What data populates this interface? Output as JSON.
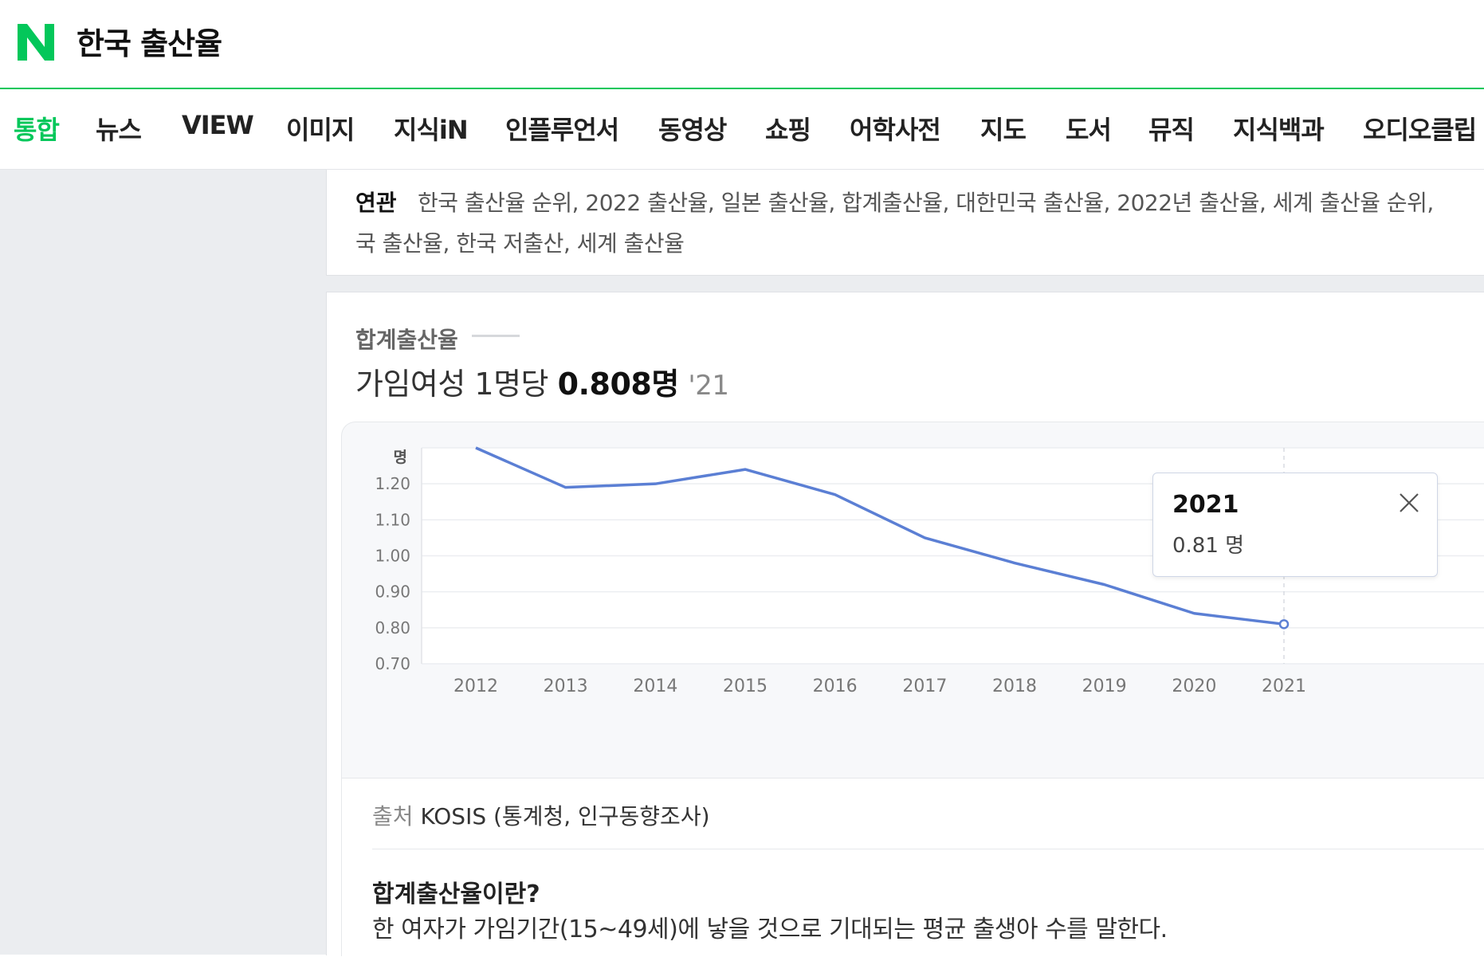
{
  "header": {
    "logo_letter": "N",
    "query": "한국 출산율"
  },
  "tabs": [
    {
      "label": "통합",
      "active": true
    },
    {
      "label": "뉴스",
      "active": false
    },
    {
      "label": "VIEW",
      "active": false
    },
    {
      "label": "이미지",
      "active": false
    },
    {
      "label": "지식iN",
      "active": false
    },
    {
      "label": "인플루언서",
      "active": false
    },
    {
      "label": "동영상",
      "active": false
    },
    {
      "label": "쇼핑",
      "active": false
    },
    {
      "label": "어학사전",
      "active": false
    },
    {
      "label": "지도",
      "active": false
    },
    {
      "label": "도서",
      "active": false
    },
    {
      "label": "뮤직",
      "active": false
    },
    {
      "label": "지식백과",
      "active": false
    },
    {
      "label": "오디오클립",
      "active": false
    }
  ],
  "related": {
    "label": "연관",
    "line1": "한국 출산율 순위, 2022 출산율, 일본 출산율, 합계출산율, 대한민국 출산율, 2022년 출산율, 세계 출산율 순위,",
    "line2": "국 출산율, 한국 저출산, 세계 출산율"
  },
  "stat": {
    "title": "합계출산율",
    "summary_prefix": "가임여성 1명당",
    "summary_value": "0.808명",
    "summary_year": "'21"
  },
  "chart_data": {
    "type": "line",
    "ylabel": "명",
    "ylim": [
      0.7,
      1.3
    ],
    "yticks": [
      "1.20",
      "1.10",
      "1.00",
      "0.90",
      "0.80",
      "0.70"
    ],
    "x": [
      "2012",
      "2013",
      "2014",
      "2015",
      "2016",
      "2017",
      "2018",
      "2019",
      "2020",
      "2021"
    ],
    "series": [
      {
        "values": [
          1.3,
          1.19,
          1.2,
          1.24,
          1.17,
          1.05,
          0.98,
          0.92,
          0.84,
          0.81
        ]
      }
    ],
    "grid": true,
    "color": "#5b7fd4"
  },
  "tooltip": {
    "year": "2021",
    "value": "0.81 명"
  },
  "source": {
    "label": "출처",
    "text": "KOSIS (통계청, 인구동향조사)"
  },
  "definition": {
    "title": "합계출산율이란?",
    "text": "한 여자가 가임기간(15~49세)에 낳을 것으로 기대되는 평균 출생아 수를 말한다."
  },
  "colors": {
    "brand": "#03c75a",
    "line": "#5b7fd4"
  }
}
